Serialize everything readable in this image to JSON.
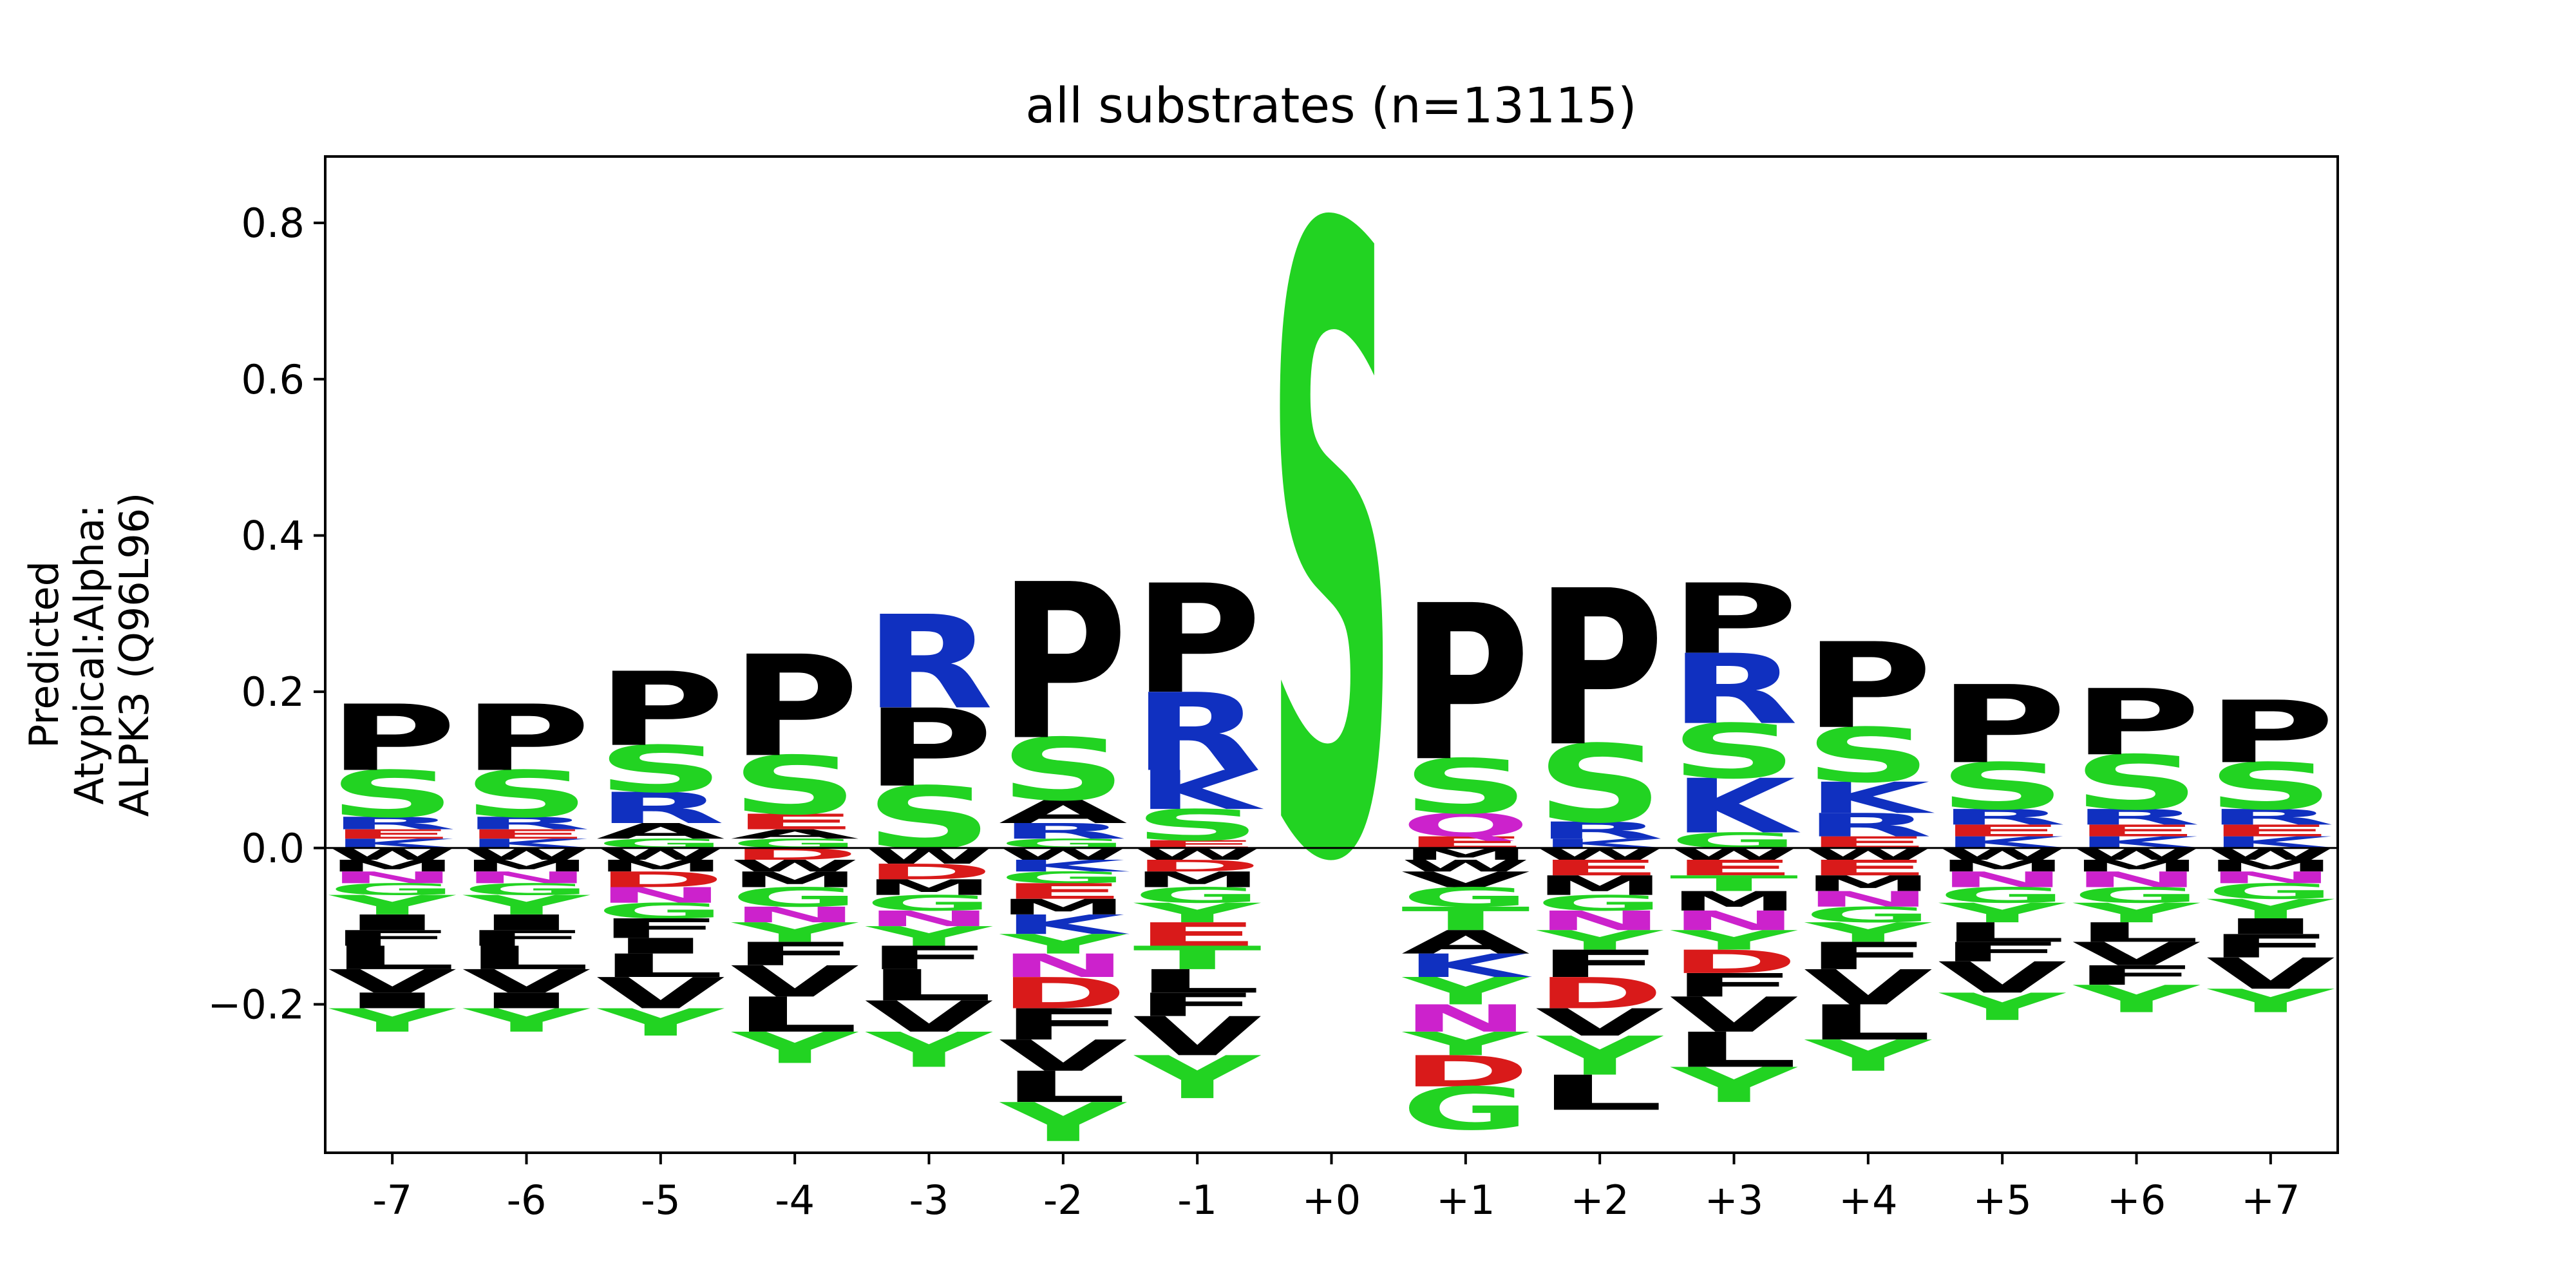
{
  "chart_data": {
    "type": "sequence-logo",
    "title": "all substrates (n=13115)",
    "ylabel_lines": [
      "Predicted",
      "Atypical:Alpha:",
      "ALPK3 (Q96L96)"
    ],
    "xlabel": "",
    "ylim": [
      -0.39,
      0.885
    ],
    "yticks": [
      -0.2,
      0.0,
      0.2,
      0.4,
      0.6,
      0.8
    ],
    "ytick_labels": [
      "−0.2",
      "0.0",
      "0.2",
      "0.4",
      "0.6",
      "0.8"
    ],
    "positions": [
      "-7",
      "-6",
      "-5",
      "-4",
      "-3",
      "-2",
      "-1",
      "+0",
      "+1",
      "+2",
      "+3",
      "+4",
      "+5",
      "+6",
      "+7"
    ],
    "colors": {
      "acidic": "#d91a1a",
      "basic": "#1030c0",
      "polar": "#22d322",
      "amide": "#cc22cc",
      "hydrophobic": "#000000"
    },
    "residue_color_map": {
      "D": "acidic",
      "E": "acidic",
      "R": "basic",
      "K": "basic",
      "H": "basic",
      "S": "polar",
      "T": "polar",
      "G": "polar",
      "Y": "polar",
      "C": "polar",
      "N": "amide",
      "Q": "amide",
      "P": "hydrophobic",
      "A": "hydrophobic",
      "V": "hydrophobic",
      "L": "hydrophobic",
      "I": "hydrophobic",
      "M": "hydrophobic",
      "F": "hydrophobic",
      "W": "hydrophobic"
    },
    "stacks": [
      {
        "pos": "-7",
        "positive": [
          [
            "K",
            0.012
          ],
          [
            "E",
            0.012
          ],
          [
            "R",
            0.016
          ],
          [
            "S",
            0.06
          ],
          [
            "P",
            0.085
          ]
        ],
        "negative": [
          [
            "W",
            0.015
          ],
          [
            "M",
            0.015
          ],
          [
            "N",
            0.015
          ],
          [
            "G",
            0.015
          ],
          [
            "Y",
            0.025
          ],
          [
            "I",
            0.02
          ],
          [
            "F",
            0.02
          ],
          [
            "L",
            0.03
          ],
          [
            "V",
            0.03
          ],
          [
            "I",
            0.02
          ],
          [
            "Y",
            0.03
          ]
        ]
      },
      {
        "pos": "-6",
        "positive": [
          [
            "K",
            0.012
          ],
          [
            "E",
            0.012
          ],
          [
            "R",
            0.016
          ],
          [
            "S",
            0.06
          ],
          [
            "P",
            0.085
          ]
        ],
        "negative": [
          [
            "W",
            0.015
          ],
          [
            "M",
            0.015
          ],
          [
            "N",
            0.015
          ],
          [
            "G",
            0.015
          ],
          [
            "Y",
            0.025
          ],
          [
            "I",
            0.02
          ],
          [
            "F",
            0.02
          ],
          [
            "L",
            0.03
          ],
          [
            "V",
            0.03
          ],
          [
            "I",
            0.02
          ],
          [
            "Y",
            0.03
          ]
        ]
      },
      {
        "pos": "-5",
        "positive": [
          [
            "G",
            0.012
          ],
          [
            "A",
            0.02
          ],
          [
            "R",
            0.04
          ],
          [
            "S",
            0.06
          ],
          [
            "P",
            0.095
          ]
        ],
        "negative": [
          [
            "W",
            0.015
          ],
          [
            "M",
            0.015
          ],
          [
            "D",
            0.02
          ],
          [
            "N",
            0.02
          ],
          [
            "G",
            0.02
          ],
          [
            "F",
            0.025
          ],
          [
            "I",
            0.02
          ],
          [
            "L",
            0.03
          ],
          [
            "V",
            0.04
          ],
          [
            "Y",
            0.035
          ]
        ]
      },
      {
        "pos": "-4",
        "positive": [
          [
            "G",
            0.012
          ],
          [
            "A",
            0.012
          ],
          [
            "E",
            0.02
          ],
          [
            "S",
            0.075
          ],
          [
            "P",
            0.13
          ]
        ],
        "negative": [
          [
            "D",
            0.015
          ],
          [
            "W",
            0.015
          ],
          [
            "M",
            0.02
          ],
          [
            "G",
            0.025
          ],
          [
            "N",
            0.02
          ],
          [
            "Y",
            0.025
          ],
          [
            "F",
            0.03
          ],
          [
            "V",
            0.04
          ],
          [
            "L",
            0.045
          ],
          [
            "Y",
            0.04
          ]
        ]
      },
      {
        "pos": "-3",
        "positive": [
          [
            "S",
            0.08
          ],
          [
            "P",
            0.1
          ],
          [
            "R",
            0.12
          ]
        ],
        "negative": [
          [
            "W",
            0.02
          ],
          [
            "D",
            0.02
          ],
          [
            "M",
            0.02
          ],
          [
            "G",
            0.02
          ],
          [
            "N",
            0.02
          ],
          [
            "Y",
            0.025
          ],
          [
            "F",
            0.03
          ],
          [
            "L",
            0.04
          ],
          [
            "V",
            0.04
          ],
          [
            "Y",
            0.045
          ]
        ]
      },
      {
        "pos": "-2",
        "positive": [
          [
            "G",
            0.012
          ],
          [
            "R",
            0.02
          ],
          [
            "A",
            0.03
          ],
          [
            "S",
            0.08
          ],
          [
            "P",
            0.2
          ]
        ],
        "negative": [
          [
            "W",
            0.015
          ],
          [
            "K",
            0.015
          ],
          [
            "G",
            0.015
          ],
          [
            "E",
            0.02
          ],
          [
            "M",
            0.02
          ],
          [
            "K",
            0.025
          ],
          [
            "Y",
            0.025
          ],
          [
            "N",
            0.03
          ],
          [
            "D",
            0.04
          ],
          [
            "F",
            0.04
          ],
          [
            "V",
            0.04
          ],
          [
            "L",
            0.04
          ],
          [
            "Y",
            0.05
          ]
        ]
      },
      {
        "pos": "-1",
        "positive": [
          [
            "E",
            0.01
          ],
          [
            "S",
            0.04
          ],
          [
            "K",
            0.05
          ],
          [
            "R",
            0.1
          ],
          [
            "P",
            0.14
          ]
        ],
        "negative": [
          [
            "W",
            0.015
          ],
          [
            "D",
            0.015
          ],
          [
            "M",
            0.02
          ],
          [
            "G",
            0.02
          ],
          [
            "Y",
            0.025
          ],
          [
            "E",
            0.03
          ],
          [
            "T",
            0.03
          ],
          [
            "L",
            0.03
          ],
          [
            "F",
            0.03
          ],
          [
            "V",
            0.05
          ],
          [
            "Y",
            0.055
          ]
        ]
      },
      {
        "pos": "+0",
        "positive": [
          [
            "S",
            0.8
          ]
        ],
        "negative": []
      },
      {
        "pos": "+1",
        "positive": [
          [
            "E",
            0.015
          ],
          [
            "Q",
            0.03
          ],
          [
            "S",
            0.07
          ],
          [
            "P",
            0.2
          ]
        ],
        "negative": [
          [
            "M",
            0.015
          ],
          [
            "W",
            0.015
          ],
          [
            "V",
            0.02
          ],
          [
            "G",
            0.025
          ],
          [
            "T",
            0.03
          ],
          [
            "A",
            0.03
          ],
          [
            "K",
            0.03
          ],
          [
            "Y",
            0.035
          ],
          [
            "N",
            0.035
          ],
          [
            "Y",
            0.03
          ],
          [
            "D",
            0.04
          ],
          [
            "G",
            0.055
          ]
        ]
      },
      {
        "pos": "+2",
        "positive": [
          [
            "K",
            0.012
          ],
          [
            "R",
            0.022
          ],
          [
            "S",
            0.1
          ],
          [
            "P",
            0.2
          ]
        ],
        "negative": [
          [
            "W",
            0.015
          ],
          [
            "E",
            0.02
          ],
          [
            "M",
            0.025
          ],
          [
            "G",
            0.02
          ],
          [
            "N",
            0.025
          ],
          [
            "Y",
            0.025
          ],
          [
            "F",
            0.035
          ],
          [
            "D",
            0.04
          ],
          [
            "V",
            0.035
          ],
          [
            "Y",
            0.05
          ],
          [
            "L",
            0.045
          ]
        ]
      },
      {
        "pos": "+3",
        "positive": [
          [
            "G",
            0.02
          ],
          [
            "K",
            0.07
          ],
          [
            "S",
            0.07
          ],
          [
            "R",
            0.09
          ],
          [
            "P",
            0.09
          ]
        ],
        "negative": [
          [
            "W",
            0.015
          ],
          [
            "E",
            0.02
          ],
          [
            "T",
            0.02
          ],
          [
            "M",
            0.025
          ],
          [
            "N",
            0.025
          ],
          [
            "Y",
            0.025
          ],
          [
            "D",
            0.03
          ],
          [
            "F",
            0.03
          ],
          [
            "V",
            0.045
          ],
          [
            "L",
            0.045
          ],
          [
            "Y",
            0.045
          ]
        ]
      },
      {
        "pos": "+4",
        "positive": [
          [
            "E",
            0.015
          ],
          [
            "R",
            0.03
          ],
          [
            "K",
            0.04
          ],
          [
            "S",
            0.07
          ],
          [
            "P",
            0.11
          ]
        ],
        "negative": [
          [
            "W",
            0.015
          ],
          [
            "E",
            0.02
          ],
          [
            "M",
            0.02
          ],
          [
            "N",
            0.02
          ],
          [
            "G",
            0.02
          ],
          [
            "Y",
            0.025
          ],
          [
            "F",
            0.035
          ],
          [
            "V",
            0.045
          ],
          [
            "L",
            0.045
          ],
          [
            "Y",
            0.04
          ]
        ]
      },
      {
        "pos": "+5",
        "positive": [
          [
            "K",
            0.015
          ],
          [
            "E",
            0.015
          ],
          [
            "R",
            0.02
          ],
          [
            "S",
            0.06
          ],
          [
            "P",
            0.1
          ]
        ],
        "negative": [
          [
            "W",
            0.015
          ],
          [
            "M",
            0.015
          ],
          [
            "N",
            0.02
          ],
          [
            "G",
            0.02
          ],
          [
            "Y",
            0.025
          ],
          [
            "L",
            0.025
          ],
          [
            "F",
            0.025
          ],
          [
            "V",
            0.04
          ],
          [
            "Y",
            0.035
          ]
        ]
      },
      {
        "pos": "+6",
        "positive": [
          [
            "K",
            0.015
          ],
          [
            "E",
            0.015
          ],
          [
            "R",
            0.02
          ],
          [
            "S",
            0.07
          ],
          [
            "P",
            0.085
          ]
        ],
        "negative": [
          [
            "W",
            0.015
          ],
          [
            "M",
            0.015
          ],
          [
            "N",
            0.02
          ],
          [
            "G",
            0.02
          ],
          [
            "Y",
            0.025
          ],
          [
            "L",
            0.025
          ],
          [
            "V",
            0.03
          ],
          [
            "F",
            0.025
          ],
          [
            "Y",
            0.035
          ]
        ]
      },
      {
        "pos": "+7",
        "positive": [
          [
            "K",
            0.015
          ],
          [
            "E",
            0.015
          ],
          [
            "R",
            0.02
          ],
          [
            "S",
            0.06
          ],
          [
            "P",
            0.08
          ]
        ],
        "negative": [
          [
            "W",
            0.015
          ],
          [
            "M",
            0.015
          ],
          [
            "N",
            0.015
          ],
          [
            "G",
            0.02
          ],
          [
            "Y",
            0.025
          ],
          [
            "I",
            0.02
          ],
          [
            "F",
            0.03
          ],
          [
            "V",
            0.04
          ],
          [
            "Y",
            0.03
          ]
        ]
      }
    ]
  }
}
